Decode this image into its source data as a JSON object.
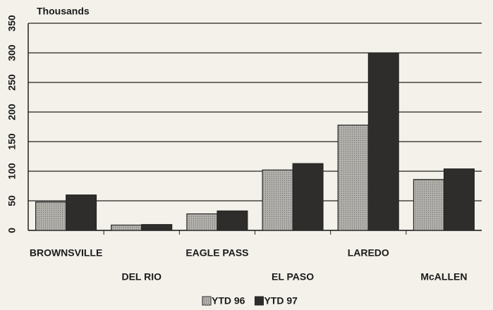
{
  "chart_data": {
    "type": "bar",
    "y_label": "Thousands",
    "categories": [
      "BROWNSVILLE",
      "DEL RIO",
      "EAGLE PASS",
      "EL PASO",
      "LAREDO",
      "McALLEN"
    ],
    "series": [
      {
        "name": "YTD 96",
        "color": "#b4b2ac",
        "values": [
          48,
          9,
          28,
          102,
          178,
          86
        ]
      },
      {
        "name": "YTD 97",
        "color": "#2e2d2b",
        "values": [
          60,
          10,
          33,
          113,
          300,
          104
        ]
      }
    ],
    "ylim": [
      0,
      350
    ],
    "yticks": [
      0,
      50,
      100,
      150,
      200,
      250,
      300,
      350
    ],
    "grid": true
  }
}
